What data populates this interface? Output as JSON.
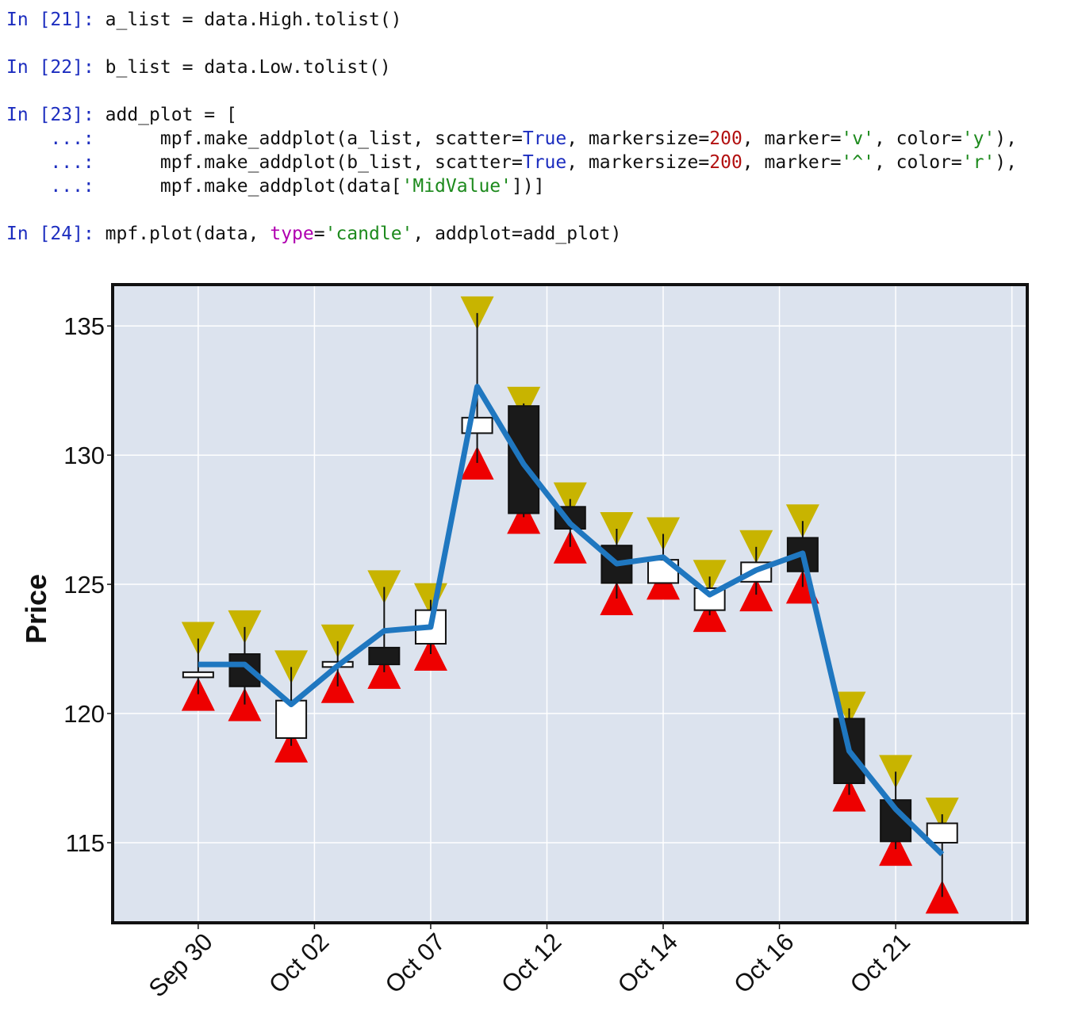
{
  "cells": [
    [
      {
        "t": "In [",
        "k": "prompt"
      },
      {
        "t": "21",
        "k": "num"
      },
      {
        "t": "]: ",
        "k": "prompt"
      },
      {
        "t": "a_list = data.High.tolist()",
        "k": "txt"
      }
    ],
    [],
    [
      {
        "t": "In [",
        "k": "prompt"
      },
      {
        "t": "22",
        "k": "num"
      },
      {
        "t": "]: ",
        "k": "prompt"
      },
      {
        "t": "b_list = data.Low.tolist()",
        "k": "txt"
      }
    ],
    [],
    [
      {
        "t": "In [",
        "k": "prompt"
      },
      {
        "t": "23",
        "k": "num"
      },
      {
        "t": "]: ",
        "k": "prompt"
      },
      {
        "t": "add_plot = [",
        "k": "txt"
      }
    ],
    [
      {
        "t": "    ...:      ",
        "k": "cont"
      },
      {
        "t": "mpf.make_addplot(a_list, scatter=",
        "k": "txt"
      },
      {
        "t": "True",
        "k": "kw"
      },
      {
        "t": ", markersize=",
        "k": "txt"
      },
      {
        "t": "200",
        "k": "int"
      },
      {
        "t": ", marker=",
        "k": "txt"
      },
      {
        "t": "'v'",
        "k": "str"
      },
      {
        "t": ", color=",
        "k": "txt"
      },
      {
        "t": "'y'",
        "k": "str"
      },
      {
        "t": "),",
        "k": "txt"
      }
    ],
    [
      {
        "t": "    ...:      ",
        "k": "cont"
      },
      {
        "t": "mpf.make_addplot(b_list, scatter=",
        "k": "txt"
      },
      {
        "t": "True",
        "k": "kw"
      },
      {
        "t": ", markersize=",
        "k": "txt"
      },
      {
        "t": "200",
        "k": "int"
      },
      {
        "t": ", marker=",
        "k": "txt"
      },
      {
        "t": "'^'",
        "k": "str"
      },
      {
        "t": ", color=",
        "k": "txt"
      },
      {
        "t": "'r'",
        "k": "str"
      },
      {
        "t": "),",
        "k": "txt"
      }
    ],
    [
      {
        "t": "    ...:      ",
        "k": "cont"
      },
      {
        "t": "mpf.make_addplot(data[",
        "k": "txt"
      },
      {
        "t": "'MidValue'",
        "k": "str"
      },
      {
        "t": "])]",
        "k": "txt"
      }
    ],
    [],
    [
      {
        "t": "In [",
        "k": "prompt"
      },
      {
        "t": "24",
        "k": "num"
      },
      {
        "t": "]: ",
        "k": "prompt"
      },
      {
        "t": "mpf.plot(data, ",
        "k": "txt"
      },
      {
        "t": "type",
        "k": "arg"
      },
      {
        "t": "=",
        "k": "txt"
      },
      {
        "t": "'candle'",
        "k": "str"
      },
      {
        "t": ", addplot=add_plot)",
        "k": "txt"
      }
    ]
  ],
  "chart_data": {
    "type": "candlestick",
    "ylabel": "Price",
    "ylim": [
      111.9,
      136.6
    ],
    "yticks": [
      115,
      120,
      125,
      130,
      135
    ],
    "xticks": [
      {
        "index": 0,
        "label": "Sep 30"
      },
      {
        "index": 2.5,
        "label": "Oct 02"
      },
      {
        "index": 5,
        "label": "Oct 07"
      },
      {
        "index": 7.5,
        "label": "Oct 12"
      },
      {
        "index": 10,
        "label": "Oct 14"
      },
      {
        "index": 12.5,
        "label": "Oct 16"
      },
      {
        "index": 15,
        "label": "Oct 21"
      }
    ],
    "grid": true,
    "colors": {
      "background": "#dce3ee",
      "up": "#ffffff",
      "down": "#1a1a1a",
      "high_marker": "#c8b400",
      "low_marker": "#ee0000",
      "mid_line": "#1f77c0"
    },
    "open": [
      121.4,
      122.3,
      119.05,
      121.8,
      122.55,
      122.7,
      130.85,
      131.9,
      128.0,
      126.5,
      125.05,
      124.0,
      125.1,
      126.8,
      119.8,
      116.65,
      115.0
    ],
    "close": [
      121.6,
      121.05,
      120.5,
      122.0,
      121.9,
      124.0,
      131.45,
      127.75,
      127.15,
      125.05,
      125.95,
      124.85,
      125.85,
      125.5,
      117.3,
      115.05,
      115.75
    ],
    "high": [
      122.9,
      123.35,
      121.8,
      122.8,
      124.9,
      124.4,
      135.5,
      132.0,
      128.3,
      127.15,
      126.95,
      125.3,
      126.45,
      127.45,
      120.2,
      117.75,
      116.1
    ],
    "low": [
      120.75,
      120.35,
      118.75,
      121.05,
      121.6,
      122.3,
      129.7,
      127.6,
      126.45,
      124.45,
      125.05,
      123.8,
      124.6,
      124.9,
      116.85,
      114.75,
      112.9
    ],
    "series": [
      {
        "name": "MidValue",
        "values": [
          121.9,
          121.9,
          120.35,
          121.85,
          123.2,
          123.35,
          132.65,
          129.65,
          127.35,
          125.8,
          126.05,
          124.6,
          125.55,
          126.2,
          118.55,
          116.3,
          114.55
        ]
      }
    ]
  }
}
